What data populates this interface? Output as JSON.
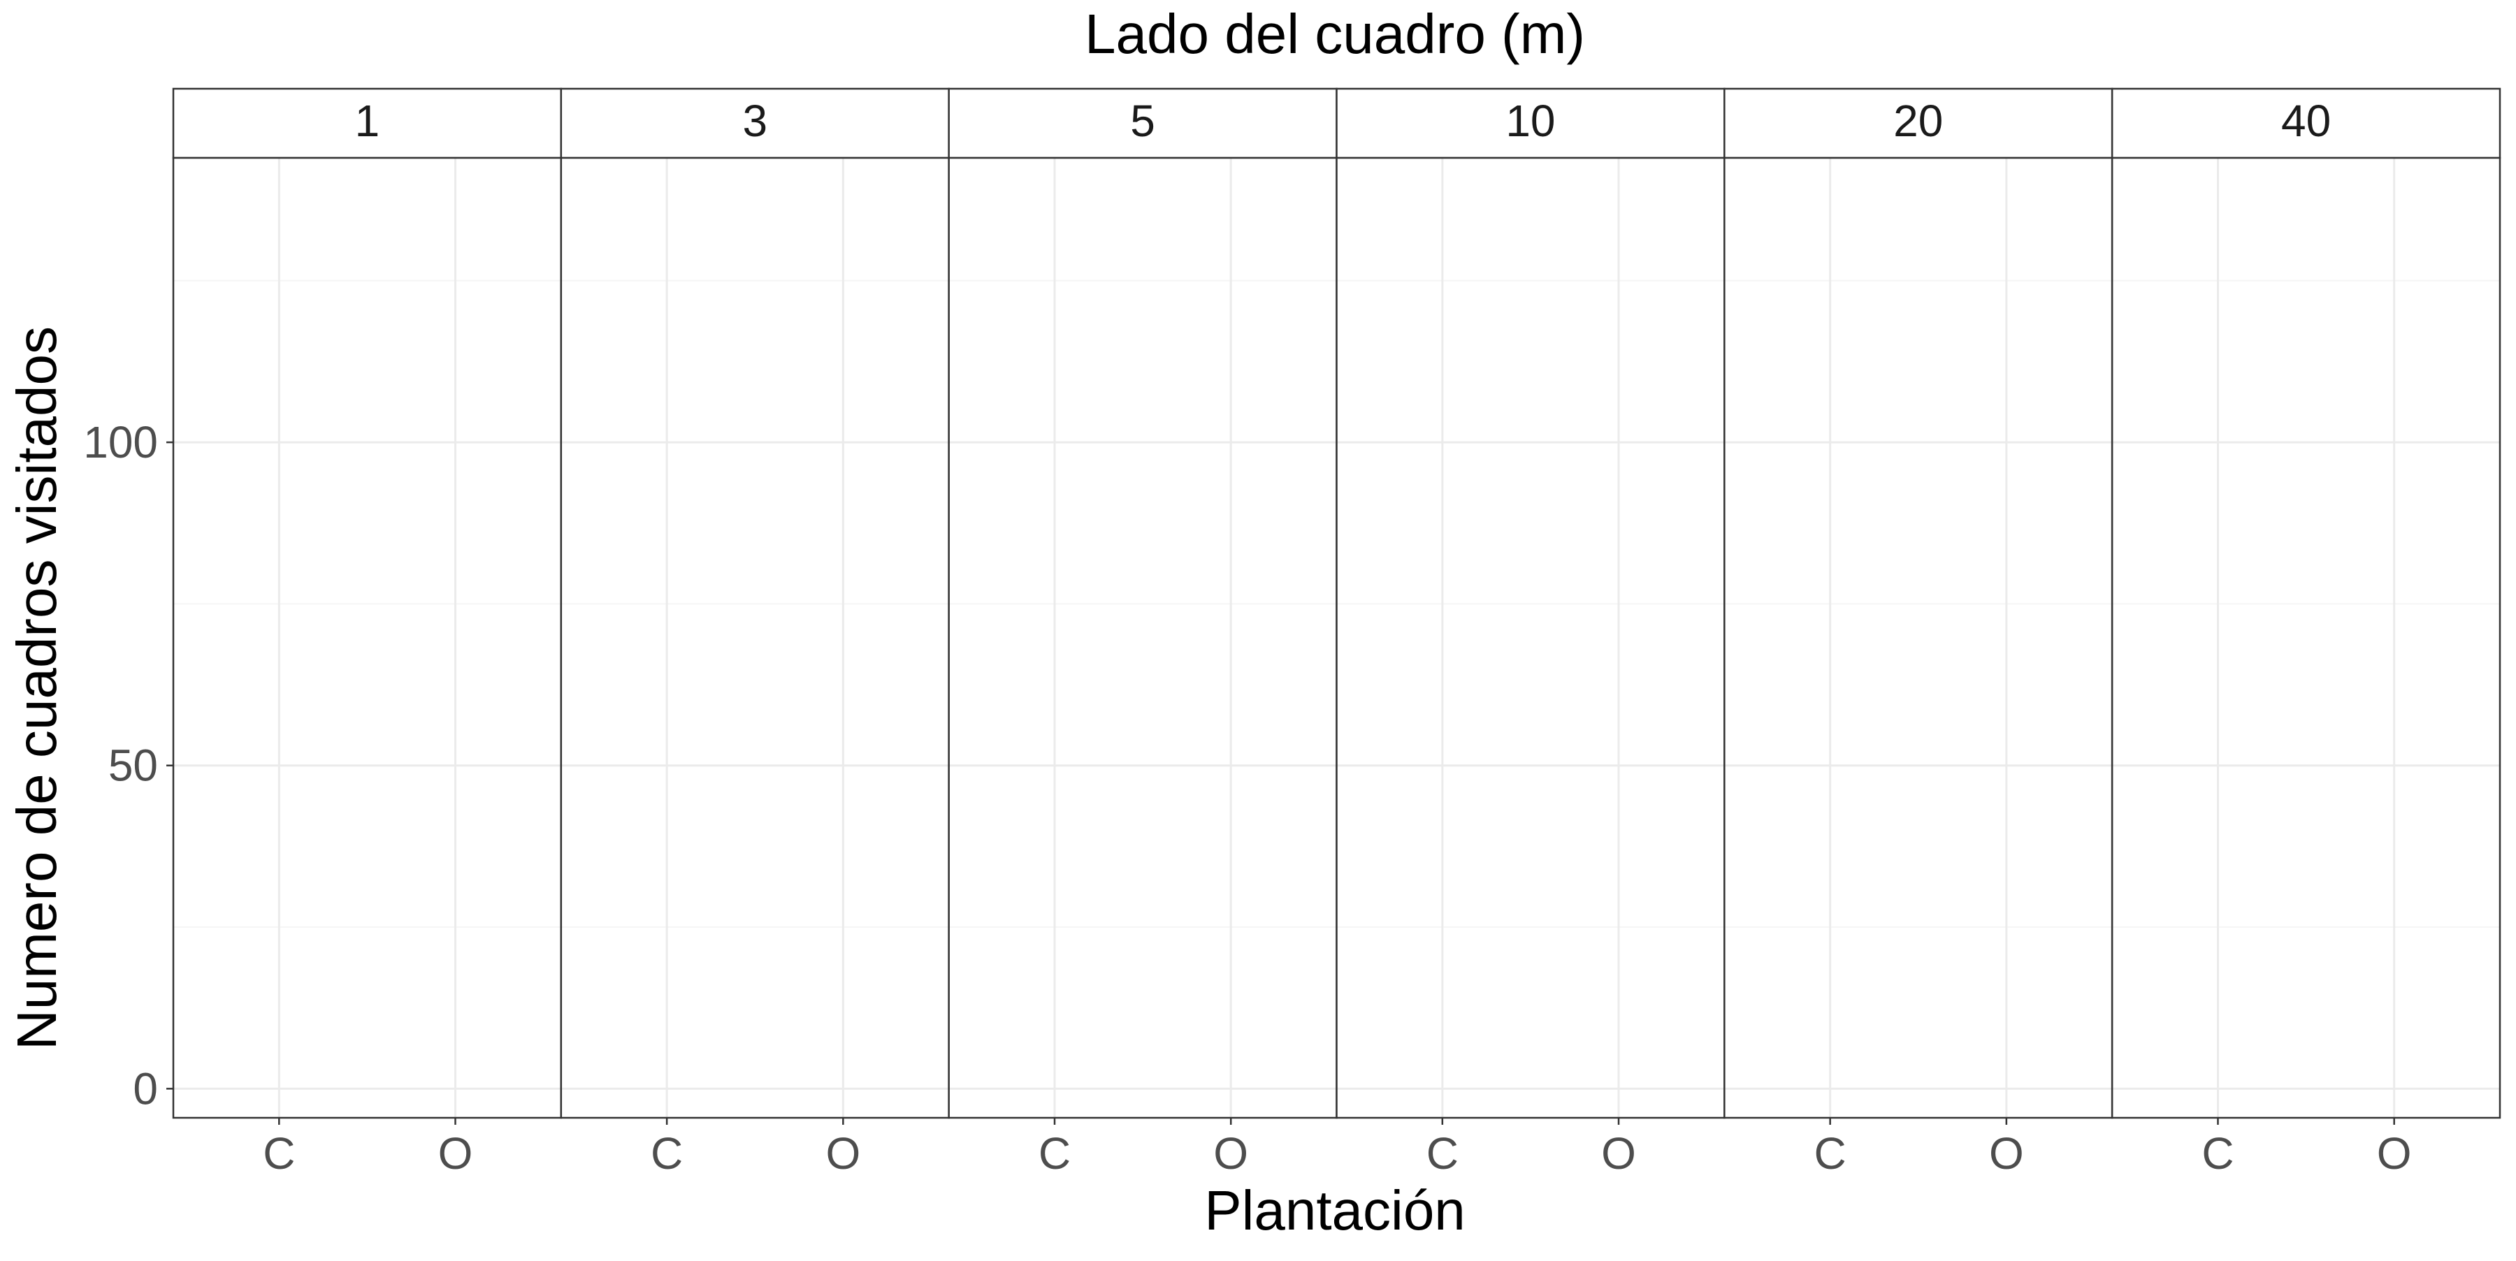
{
  "chart_data": {
    "type": "bar",
    "title": "Lado del cuadro (m)",
    "xlabel": "Plantación",
    "ylabel": "Numero de cuadros visitados",
    "facets": [
      "1",
      "3",
      "5",
      "10",
      "20",
      "40"
    ],
    "categories": [
      "C",
      "O"
    ],
    "series": [],
    "y_ticks": [
      0,
      50,
      100
    ],
    "ylim": [
      -4.5,
      144
    ],
    "grid": true,
    "legend": "none"
  },
  "colors": {
    "panel_border": "#333333",
    "grid_major": "#ebebeb",
    "grid_minor": "#f5f5f5",
    "tick_text": "#4d4d4d",
    "title_text": "#000000",
    "strip_text": "#1a1a1a"
  }
}
